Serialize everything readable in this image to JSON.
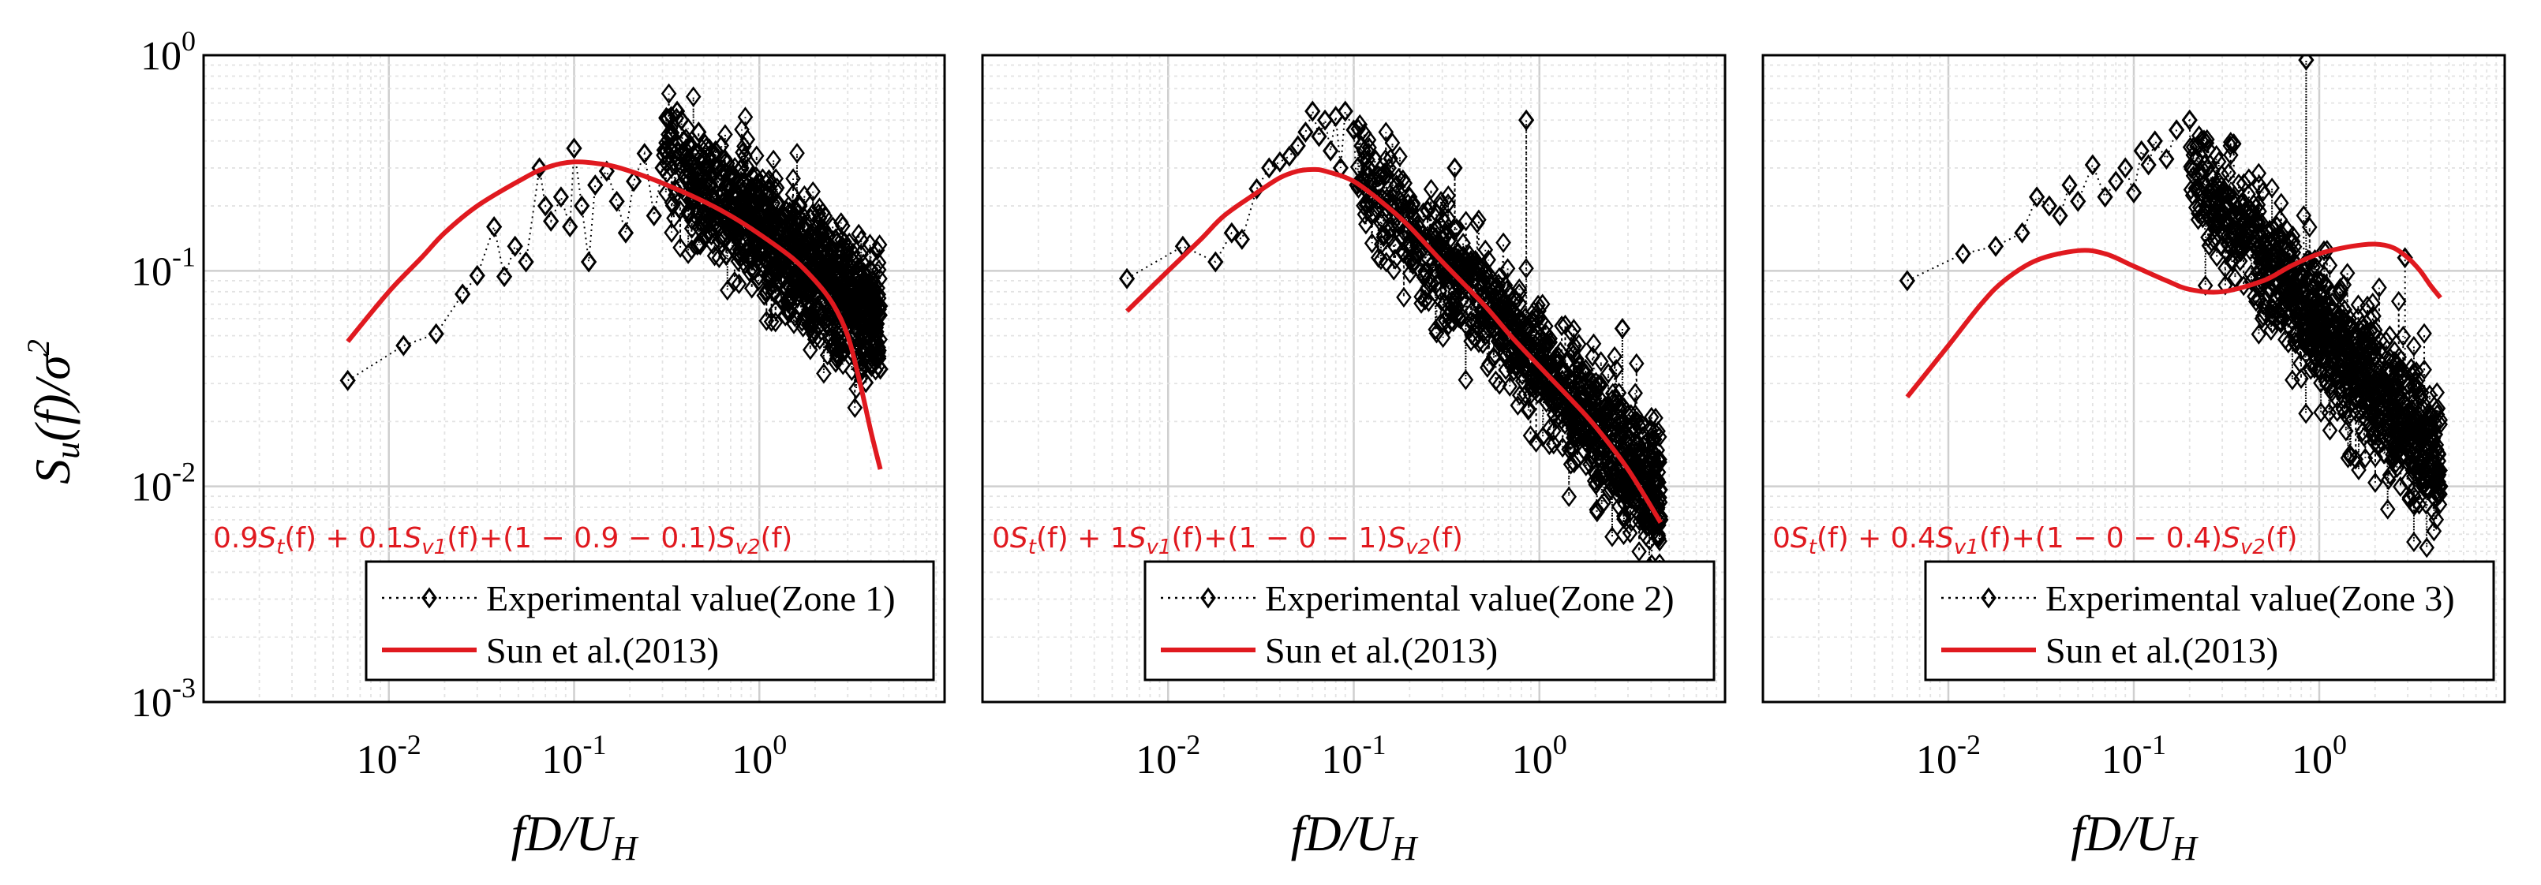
{
  "colors": {
    "model": "#e0191f",
    "experimental": "#000000",
    "grid_major": "#cfcfcf",
    "grid_minor": "#e3e3e3"
  },
  "labels": {
    "ylabel_main": "S",
    "ylabel_sub": "u",
    "ylabel_rest": "(f)/σ",
    "ylabel_sup": "2",
    "xlabel_main": "fD/U",
    "xlabel_sub": "H"
  },
  "chart_data": [
    {
      "type": "scatter",
      "panel": "Zone 1",
      "xscale": "log",
      "yscale": "log",
      "xlim": [
        0.001,
        10
      ],
      "ylim": [
        0.001,
        1
      ],
      "x_ticks": [
        {
          "base": "10",
          "exp": "-2",
          "value": 0.01
        },
        {
          "base": "10",
          "exp": "-1",
          "value": 0.1
        },
        {
          "base": "10",
          "exp": "0",
          "value": 1
        }
      ],
      "y_ticks": [
        {
          "base": "10",
          "exp": "0",
          "value": 1
        },
        {
          "base": "10",
          "exp": "-1",
          "value": 0.1
        },
        {
          "base": "10",
          "exp": "-2",
          "value": 0.01
        },
        {
          "base": "10",
          "exp": "-3",
          "value": 0.001
        }
      ],
      "formula": "0.9S_t(f) + 0.1S_v1(f)+(1 − 0.9 − 0.1)S_v2(f)",
      "formula_parts": [
        "0.9",
        "S",
        "t",
        "(f) + 0.1",
        "S",
        "v1",
        "(f)+(1 − 0.9 − 0.1)",
        "S",
        "v2",
        "(f)"
      ],
      "legend": {
        "position": "bottom-right",
        "experimental": "Experimental value(Zone 1)",
        "model": "Sun et al.(2013)"
      },
      "series": [
        {
          "name": "Experimental value(Zone 1)",
          "style": "diamond markers, dotted line",
          "points": [
            [
              0.006,
              0.031
            ],
            [
              0.012,
              0.045
            ],
            [
              0.018,
              0.051
            ],
            [
              0.025,
              0.078
            ],
            [
              0.03,
              0.095
            ],
            [
              0.037,
              0.16
            ],
            [
              0.042,
              0.094
            ],
            [
              0.048,
              0.13
            ],
            [
              0.055,
              0.11
            ],
            [
              0.065,
              0.3
            ],
            [
              0.07,
              0.2
            ],
            [
              0.075,
              0.17
            ],
            [
              0.085,
              0.22
            ],
            [
              0.095,
              0.16
            ],
            [
              0.1,
              0.37
            ],
            [
              0.11,
              0.2
            ],
            [
              0.12,
              0.11
            ],
            [
              0.13,
              0.25
            ],
            [
              0.15,
              0.29
            ],
            [
              0.17,
              0.21
            ],
            [
              0.19,
              0.15
            ],
            [
              0.21,
              0.26
            ],
            [
              0.24,
              0.35
            ],
            [
              0.27,
              0.18
            ],
            [
              0.3,
              0.3
            ],
            [
              0.33,
              0.42
            ],
            [
              0.36,
              0.55
            ],
            [
              0.38,
              0.5
            ],
            [
              0.42,
              0.38
            ],
            [
              0.47,
              0.44
            ],
            [
              0.52,
              0.3
            ],
            [
              0.58,
              0.36
            ],
            [
              0.65,
              0.33
            ],
            [
              0.72,
              0.28
            ],
            [
              0.8,
              0.3
            ],
            [
              0.9,
              0.24
            ],
            [
              1.0,
              0.22
            ],
            [
              1.1,
              0.2
            ],
            [
              1.25,
              0.17
            ],
            [
              1.4,
              0.19
            ],
            [
              1.55,
              0.15
            ],
            [
              1.75,
              0.13
            ],
            [
              1.95,
              0.12
            ],
            [
              2.2,
              0.1
            ],
            [
              2.5,
              0.09
            ],
            [
              2.8,
              0.075
            ],
            [
              3.1,
              0.07
            ],
            [
              3.4,
              0.06
            ],
            [
              3.7,
              0.05
            ],
            [
              4.0,
              0.045
            ],
            [
              4.3,
              0.04
            ],
            [
              4.5,
              0.035
            ]
          ],
          "cloud": {
            "x_start": 0.3,
            "x_end": 4.5,
            "y_start": 0.35,
            "y_end": 0.055,
            "spread_start": 1.5,
            "spread_end": 1.9,
            "count": 950
          }
        },
        {
          "name": "Sun et al.(2013)",
          "style": "solid red line",
          "points": [
            [
              0.006,
              0.047
            ],
            [
              0.01,
              0.08
            ],
            [
              0.015,
              0.115
            ],
            [
              0.02,
              0.15
            ],
            [
              0.03,
              0.2
            ],
            [
              0.05,
              0.26
            ],
            [
              0.07,
              0.3
            ],
            [
              0.1,
              0.32
            ],
            [
              0.15,
              0.31
            ],
            [
              0.2,
              0.29
            ],
            [
              0.3,
              0.255
            ],
            [
              0.5,
              0.21
            ],
            [
              0.7,
              0.18
            ],
            [
              1.0,
              0.148
            ],
            [
              1.5,
              0.115
            ],
            [
              2.0,
              0.09
            ],
            [
              2.5,
              0.07
            ],
            [
              3.0,
              0.05
            ],
            [
              3.5,
              0.03
            ],
            [
              4.0,
              0.018
            ],
            [
              4.5,
              0.012
            ]
          ]
        }
      ]
    },
    {
      "type": "scatter",
      "panel": "Zone 2",
      "xscale": "log",
      "yscale": "log",
      "xlim": [
        0.001,
        10
      ],
      "ylim": [
        0.001,
        1
      ],
      "x_ticks": [
        {
          "base": "10",
          "exp": "-2",
          "value": 0.01
        },
        {
          "base": "10",
          "exp": "-1",
          "value": 0.1
        },
        {
          "base": "10",
          "exp": "0",
          "value": 1
        }
      ],
      "formula": "0S_t(f) + 1S_v1(f)+(1 − 0 − 1)S_v2(f)",
      "formula_parts": [
        "0",
        "S",
        "t",
        "(f) + 1",
        "S",
        "v1",
        "(f)+(1 − 0 − 1)",
        "S",
        "v2",
        "(f)"
      ],
      "legend": {
        "position": "bottom-right",
        "experimental": "Experimental value(Zone 2)",
        "model": "Sun et al.(2013)"
      },
      "series": [
        {
          "name": "Experimental value(Zone 2)",
          "style": "diamond markers, dotted line",
          "points": [
            [
              0.006,
              0.092
            ],
            [
              0.012,
              0.13
            ],
            [
              0.018,
              0.11
            ],
            [
              0.022,
              0.15
            ],
            [
              0.025,
              0.14
            ],
            [
              0.03,
              0.24
            ],
            [
              0.035,
              0.3
            ],
            [
              0.04,
              0.32
            ],
            [
              0.045,
              0.34
            ],
            [
              0.05,
              0.38
            ],
            [
              0.055,
              0.44
            ],
            [
              0.06,
              0.55
            ],
            [
              0.065,
              0.42
            ],
            [
              0.07,
              0.5
            ],
            [
              0.075,
              0.36
            ],
            [
              0.08,
              0.52
            ],
            [
              0.085,
              0.3
            ],
            [
              0.09,
              0.55
            ],
            [
              0.1,
              0.45
            ],
            [
              0.11,
              0.38
            ],
            [
              0.12,
              0.3
            ],
            [
              0.13,
              0.33
            ],
            [
              0.15,
              0.28
            ],
            [
              0.17,
              0.25
            ],
            [
              0.2,
              0.22
            ],
            [
              0.25,
              0.19
            ],
            [
              0.3,
              0.14
            ],
            [
              0.35,
              0.3
            ],
            [
              0.4,
              0.11
            ],
            [
              0.5,
              0.09
            ],
            [
              0.6,
              0.08
            ],
            [
              0.7,
              0.06
            ],
            [
              0.8,
              0.05
            ],
            [
              0.85,
              0.5
            ],
            [
              0.9,
              0.045
            ],
            [
              1.0,
              0.035
            ],
            [
              1.2,
              0.028
            ],
            [
              1.5,
              0.022
            ],
            [
              1.8,
              0.018
            ],
            [
              2.2,
              0.015
            ],
            [
              2.6,
              0.012
            ],
            [
              2.8,
              0.054
            ],
            [
              3.0,
              0.01
            ],
            [
              3.5,
              0.009
            ],
            [
              4.0,
              0.008
            ],
            [
              4.5,
              0.007
            ]
          ],
          "cloud": {
            "x_start": 0.1,
            "x_end": 4.5,
            "y_start": 0.3,
            "y_end": 0.009,
            "spread_start": 1.4,
            "spread_end": 1.8,
            "count": 950
          }
        },
        {
          "name": "Sun et al.(2013)",
          "style": "solid red line",
          "points": [
            [
              0.006,
              0.065
            ],
            [
              0.01,
              0.1
            ],
            [
              0.015,
              0.14
            ],
            [
              0.02,
              0.18
            ],
            [
              0.03,
              0.23
            ],
            [
              0.04,
              0.27
            ],
            [
              0.05,
              0.29
            ],
            [
              0.06,
              0.295
            ],
            [
              0.07,
              0.29
            ],
            [
              0.1,
              0.26
            ],
            [
              0.15,
              0.2
            ],
            [
              0.2,
              0.16
            ],
            [
              0.3,
              0.11
            ],
            [
              0.5,
              0.07
            ],
            [
              0.7,
              0.05
            ],
            [
              1.0,
              0.036
            ],
            [
              1.5,
              0.025
            ],
            [
              2.0,
              0.019
            ],
            [
              3.0,
              0.012
            ],
            [
              4.5,
              0.0068
            ]
          ]
        }
      ]
    },
    {
      "type": "scatter",
      "panel": "Zone 3",
      "xscale": "log",
      "yscale": "log",
      "xlim": [
        0.001,
        10
      ],
      "ylim": [
        0.001,
        1
      ],
      "x_ticks": [
        {
          "base": "10",
          "exp": "-2",
          "value": 0.01
        },
        {
          "base": "10",
          "exp": "-1",
          "value": 0.1
        },
        {
          "base": "10",
          "exp": "0",
          "value": 1
        }
      ],
      "formula": "0S_t(f) + 0.4S_v1(f)+(1 − 0 − 0.4)S_v2(f)",
      "formula_parts": [
        "0",
        "S",
        "t",
        "(f) + 0.4",
        "S",
        "v1",
        "(f)+(1 − 0 − 0.4)",
        "S",
        "v2",
        "(f)"
      ],
      "legend": {
        "position": "bottom-right",
        "experimental": "Experimental value(Zone 3)",
        "model": "Sun et al.(2013)"
      },
      "series": [
        {
          "name": "Experimental value(Zone 3)",
          "style": "diamond markers, dotted line",
          "points": [
            [
              0.006,
              0.09
            ],
            [
              0.012,
              0.12
            ],
            [
              0.018,
              0.13
            ],
            [
              0.025,
              0.15
            ],
            [
              0.03,
              0.22
            ],
            [
              0.035,
              0.2
            ],
            [
              0.04,
              0.18
            ],
            [
              0.045,
              0.25
            ],
            [
              0.05,
              0.21
            ],
            [
              0.06,
              0.31
            ],
            [
              0.07,
              0.22
            ],
            [
              0.08,
              0.26
            ],
            [
              0.09,
              0.3
            ],
            [
              0.1,
              0.23
            ],
            [
              0.11,
              0.36
            ],
            [
              0.12,
              0.31
            ],
            [
              0.13,
              0.4
            ],
            [
              0.15,
              0.33
            ],
            [
              0.17,
              0.45
            ],
            [
              0.2,
              0.5
            ],
            [
              0.22,
              0.38
            ],
            [
              0.25,
              0.3
            ],
            [
              0.3,
              0.22
            ],
            [
              0.35,
              0.18
            ],
            [
              0.4,
              0.15
            ],
            [
              0.5,
              0.12
            ],
            [
              0.6,
              0.1
            ],
            [
              0.7,
              0.08
            ],
            [
              0.8,
              0.07
            ],
            [
              0.85,
              0.95
            ],
            [
              0.9,
              0.06
            ],
            [
              1.0,
              0.05
            ],
            [
              1.2,
              0.04
            ],
            [
              1.5,
              0.032
            ],
            [
              2.0,
              0.025
            ],
            [
              2.5,
              0.02
            ],
            [
              2.9,
              0.115
            ],
            [
              3.0,
              0.016
            ],
            [
              3.5,
              0.013
            ],
            [
              4.0,
              0.011
            ],
            [
              4.5,
              0.01
            ]
          ],
          "cloud": {
            "x_start": 0.2,
            "x_end": 4.5,
            "y_start": 0.3,
            "y_end": 0.012,
            "spread_start": 1.5,
            "spread_end": 1.9,
            "count": 950
          }
        },
        {
          "name": "Sun et al.(2013)",
          "style": "solid red line",
          "points": [
            [
              0.006,
              0.026
            ],
            [
              0.01,
              0.045
            ],
            [
              0.015,
              0.07
            ],
            [
              0.02,
              0.09
            ],
            [
              0.03,
              0.112
            ],
            [
              0.05,
              0.124
            ],
            [
              0.07,
              0.12
            ],
            [
              0.1,
              0.105
            ],
            [
              0.15,
              0.09
            ],
            [
              0.2,
              0.082
            ],
            [
              0.3,
              0.08
            ],
            [
              0.5,
              0.09
            ],
            [
              0.7,
              0.105
            ],
            [
              1.0,
              0.12
            ],
            [
              1.5,
              0.13
            ],
            [
              2.0,
              0.133
            ],
            [
              2.5,
              0.128
            ],
            [
              3.0,
              0.115
            ],
            [
              3.5,
              0.1
            ],
            [
              4.0,
              0.085
            ],
            [
              4.5,
              0.075
            ]
          ]
        }
      ]
    }
  ]
}
